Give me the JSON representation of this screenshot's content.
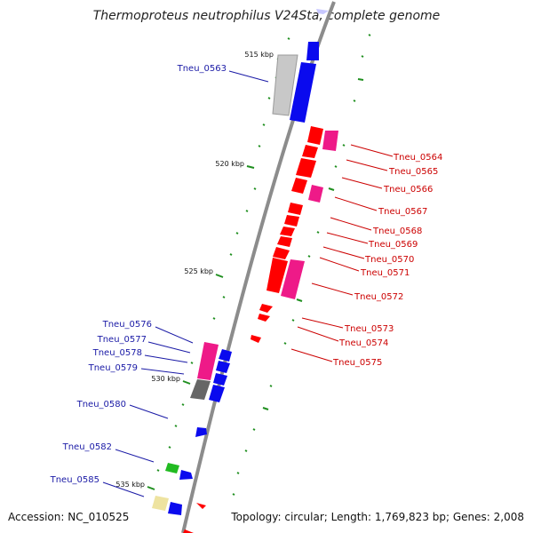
{
  "title": "Thermoproteus neutrophilus V24Sta, complete genome",
  "colors": {
    "backbone": "#8c8c8c",
    "red": "#ff0000",
    "magenta": "#ee1a88",
    "blue": "#0a0aee",
    "gray_box": "#c8c8c8",
    "dark_box": "#666666",
    "green": "#22bb22",
    "yellow": "#eee3a0",
    "tick_green": "#1f8f1f",
    "left_label": "#1a1aa6",
    "right_label": "#cc0000"
  },
  "kbp_labels": [
    "515 kbp",
    "520 kbp",
    "525 kbp",
    "530 kbp",
    "535 kbp"
  ],
  "left_genes": [
    "Tneu_0563",
    "Tneu_0576",
    "Tneu_0577",
    "Tneu_0578",
    "Tneu_0579",
    "Tneu_0580",
    "Tneu_0582",
    "Tneu_0585"
  ],
  "right_genes": [
    "Tneu_0564",
    "Tneu_0565",
    "Tneu_0566",
    "Tneu_0567",
    "Tneu_0568",
    "Tneu_0569",
    "Tneu_0570",
    "Tneu_0571",
    "Tneu_0572",
    "Tneu_0573",
    "Tneu_0574",
    "Tneu_0575"
  ],
  "footer": {
    "accession": "Accession: NC_010525",
    "stats": "Topology: circular; Length: 1,769,823 bp; Genes: 2,008"
  }
}
